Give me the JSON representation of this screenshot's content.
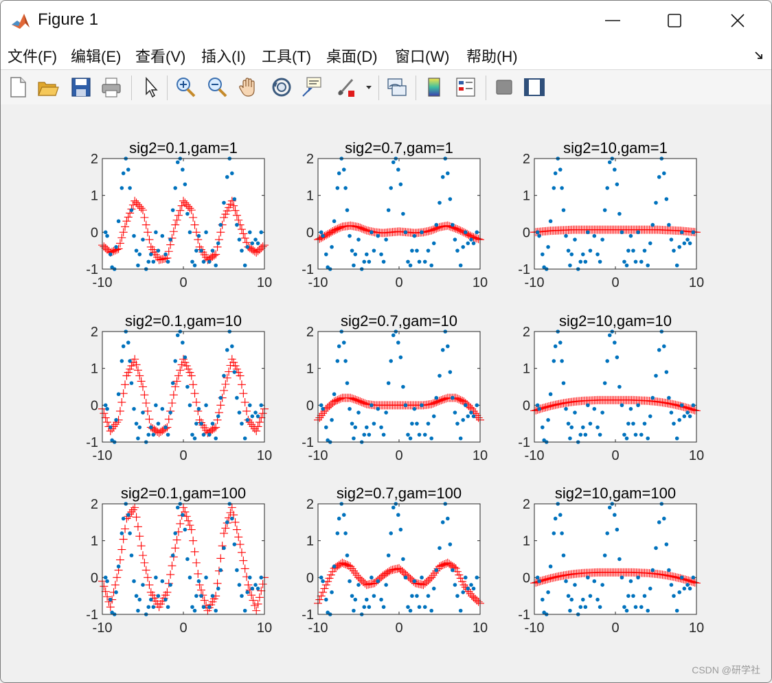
{
  "window": {
    "title": "Figure 1"
  },
  "menu": [
    {
      "label": "文件(F)"
    },
    {
      "label": "编辑(E)"
    },
    {
      "label": "查看(V)"
    },
    {
      "label": "插入(I)"
    },
    {
      "label": "工具(T)"
    },
    {
      "label": "桌面(D)"
    },
    {
      "label": "窗口(W)"
    },
    {
      "label": "帮助(H)"
    }
  ],
  "toolbar": [
    {
      "icon": "new-figure-icon"
    },
    {
      "icon": "open-file-icon"
    },
    {
      "icon": "save-icon"
    },
    {
      "icon": "print-icon"
    },
    {
      "icon": "pointer-icon"
    },
    {
      "icon": "zoom-in-icon"
    },
    {
      "icon": "zoom-out-icon"
    },
    {
      "icon": "pan-hand-icon"
    },
    {
      "icon": "rotate-3d-icon"
    },
    {
      "icon": "data-cursor-icon"
    },
    {
      "icon": "brush-icon"
    },
    {
      "icon": "link-plot-icon"
    },
    {
      "icon": "colorbar-icon"
    },
    {
      "icon": "legend-icon"
    },
    {
      "icon": "hide-plot-tools-icon"
    },
    {
      "icon": "show-plot-tools-icon"
    }
  ],
  "watermark": "CSDN @研学社",
  "chart_data": {
    "type": "scatter",
    "layout": "3x3 subplot grid",
    "xlim": [
      -10,
      10
    ],
    "ylim": [
      -1,
      2
    ],
    "xticks": [
      "-10",
      "0",
      "10"
    ],
    "yticks": [
      "-1",
      "0",
      "1",
      "2"
    ],
    "data_points": {
      "marker": "dot",
      "color": "#0072bd",
      "x": [
        -9.6,
        -9.4,
        -9.0,
        -8.8,
        -8.5,
        -8.3,
        -8.0,
        -7.6,
        -7.4,
        -7.1,
        -6.8,
        -6.6,
        -6.4,
        -6.1,
        -5.8,
        -5.6,
        -5.4,
        -5.0,
        -4.6,
        -4.3,
        -4.0,
        -3.7,
        -3.4,
        -3.1,
        -2.6,
        -2.2,
        -1.9,
        -1.6,
        -1.3,
        -1.0,
        -0.7,
        -0.4,
        -0.1,
        0.2,
        0.5,
        0.8,
        1.1,
        1.4,
        1.6,
        1.9,
        2.2,
        2.5,
        2.8,
        3.2,
        3.6,
        4.0,
        4.3,
        4.6,
        5.0,
        5.4,
        5.7,
        6.0,
        6.3,
        6.6,
        6.9,
        7.2,
        7.6,
        7.9,
        8.2,
        8.5,
        8.9,
        9.2,
        9.6
      ],
      "y": [
        0.0,
        -0.1,
        -0.6,
        -0.95,
        -1.0,
        -0.4,
        0.3,
        1.2,
        1.6,
        2.0,
        1.7,
        1.2,
        0.6,
        -0.1,
        -0.5,
        -0.9,
        -0.6,
        -0.2,
        -1.0,
        -0.8,
        -0.6,
        -0.8,
        0.0,
        -0.5,
        -0.1,
        -0.6,
        -0.8,
        -0.2,
        0.6,
        1.2,
        1.9,
        2.0,
        1.7,
        1.3,
        0.5,
        0.0,
        -0.8,
        -0.9,
        -0.5,
        -0.1,
        -0.5,
        -0.8,
        0.0,
        -0.8,
        -0.5,
        -0.9,
        -0.3,
        0.2,
        0.8,
        1.5,
        2.0,
        1.6,
        0.9,
        0.2,
        -0.2,
        -0.5,
        -0.9,
        -0.4,
        0.0,
        -0.3,
        -0.2,
        -0.3,
        0.0
      ]
    },
    "fit_style": {
      "marker": "plus",
      "color": "#ff0000"
    },
    "panels": [
      {
        "title": "sig2=0.1,gam=1",
        "fit": "fit_a"
      },
      {
        "title": "sig2=0.7,gam=1",
        "fit": "fit_b"
      },
      {
        "title": "sig2=10,gam=1",
        "fit": "fit_c"
      },
      {
        "title": "sig2=0.1,gam=10",
        "fit": "fit_d"
      },
      {
        "title": "sig2=0.7,gam=10",
        "fit": "fit_e"
      },
      {
        "title": "sig2=10,gam=10",
        "fit": "fit_f"
      },
      {
        "title": "sig2=0.1,gam=100",
        "fit": "fit_g"
      },
      {
        "title": "sig2=0.7,gam=100",
        "fit": "fit_h"
      },
      {
        "title": "sig2=10,gam=100",
        "fit": "fit_f"
      }
    ],
    "fits": {
      "x": [
        -10,
        -9,
        -8,
        -7,
        -6,
        -5,
        -4,
        -3,
        -2,
        -1,
        0,
        1,
        2,
        3,
        4,
        5,
        6,
        7,
        8,
        9,
        10
      ],
      "fit_a": [
        -0.35,
        -0.55,
        -0.45,
        0.3,
        0.85,
        0.6,
        -0.4,
        -0.75,
        -0.7,
        0.2,
        0.85,
        0.6,
        -0.4,
        -0.75,
        -0.6,
        0.4,
        0.85,
        0.2,
        -0.4,
        -0.55,
        -0.35
      ],
      "fit_b": [
        -0.2,
        -0.08,
        0.05,
        0.15,
        0.18,
        0.14,
        0.05,
        0.0,
        -0.02,
        0.0,
        0.02,
        0.0,
        -0.02,
        0.0,
        0.05,
        0.14,
        0.18,
        0.1,
        0.0,
        -0.12,
        -0.2
      ],
      "fit_c": [
        0.0,
        0.02,
        0.04,
        0.05,
        0.06,
        0.07,
        0.07,
        0.07,
        0.07,
        0.07,
        0.07,
        0.07,
        0.07,
        0.07,
        0.07,
        0.07,
        0.06,
        0.05,
        0.04,
        0.02,
        0.0
      ],
      "fit_d": [
        -0.1,
        -0.7,
        -0.4,
        0.8,
        1.25,
        0.5,
        -0.6,
        -0.75,
        -0.6,
        0.5,
        1.25,
        0.8,
        -0.4,
        -0.75,
        -0.6,
        0.4,
        1.25,
        0.8,
        -0.4,
        -0.7,
        -0.1
      ],
      "fit_e": [
        -0.4,
        -0.1,
        0.1,
        0.2,
        0.2,
        0.12,
        0.03,
        0.0,
        0.0,
        0.0,
        0.0,
        0.0,
        0.0,
        0.0,
        0.03,
        0.12,
        0.2,
        0.2,
        0.1,
        -0.1,
        -0.4
      ],
      "fit_f": [
        -0.15,
        -0.08,
        -0.02,
        0.03,
        0.07,
        0.1,
        0.12,
        0.13,
        0.14,
        0.14,
        0.14,
        0.14,
        0.14,
        0.13,
        0.12,
        0.1,
        0.07,
        0.03,
        -0.02,
        -0.08,
        -0.15
      ],
      "fit_g": [
        -0.1,
        -0.8,
        0.2,
        1.6,
        1.9,
        0.6,
        -0.4,
        -0.8,
        -0.4,
        0.8,
        1.9,
        1.3,
        -0.2,
        -0.9,
        -0.5,
        1.2,
        1.9,
        0.9,
        -0.2,
        -0.9,
        0.0
      ],
      "fit_h": [
        -0.7,
        -0.2,
        0.25,
        0.4,
        0.3,
        0.0,
        -0.2,
        -0.15,
        0.05,
        0.2,
        0.25,
        0.05,
        -0.15,
        -0.2,
        0.0,
        0.3,
        0.4,
        0.25,
        -0.2,
        -0.5,
        -0.7
      ]
    }
  }
}
